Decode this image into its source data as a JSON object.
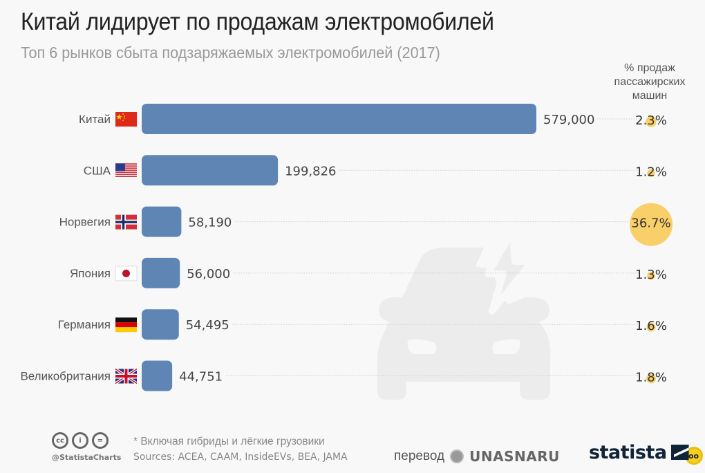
{
  "header": {
    "title": "Китай лидирует по продажам электромобилей",
    "subtitle": "Топ 6 рынков сбыта подзаряжаемых электромобилей (2017)"
  },
  "colors": {
    "bar": "#5f85b4",
    "bubble": "#f8ca5a",
    "title": "#222222",
    "subtitle": "#999999",
    "background": "#f8f8f8",
    "watermark": "#ececec"
  },
  "chart_data": {
    "type": "bar",
    "orientation": "horizontal",
    "title": "Китай лидирует по продажам электромобилей",
    "subtitle": "Топ 6 рынков сбыта подзаряжаемых электромобилей (2017)",
    "xlabel": "",
    "ylabel": "",
    "categories": [
      "Китай",
      "США",
      "Норвегия",
      "Япония",
      "Германия",
      "Великобритания"
    ],
    "flags": [
      "flag-china",
      "flag-usa",
      "flag-norway",
      "flag-japan",
      "flag-germany",
      "flag-uk"
    ],
    "values": [
      579000,
      199826,
      58190,
      56000,
      54495,
      44751
    ],
    "value_labels": [
      "579,000",
      "199,826",
      "58,190",
      "56,000",
      "54,495",
      "44,751"
    ],
    "xlim": [
      0,
      579000
    ],
    "grid": false,
    "secondary_series": {
      "name": "% продаж пассажирских машин",
      "type": "bubble",
      "values": [
        2.3,
        1.2,
        36.7,
        1.3,
        1.6,
        1.8
      ],
      "labels": [
        "2.3%",
        "1.2%",
        "36.7%",
        "1.3%",
        "1.6%",
        "1.8%"
      ]
    }
  },
  "column_header": [
    "% продаж",
    "пассажирских",
    "машин"
  ],
  "footer": {
    "note": "* Включая гибриды и лёгкие грузовики",
    "sources": "Sources: ACEA, CAAM, InsideEVs, BEA, JAMA",
    "handle": "@StatistaCharts",
    "cc_icons": [
      "cc",
      "i",
      "="
    ],
    "translation_label": "перевод",
    "translation_brand": "UNASNARU",
    "brand": "statista"
  }
}
